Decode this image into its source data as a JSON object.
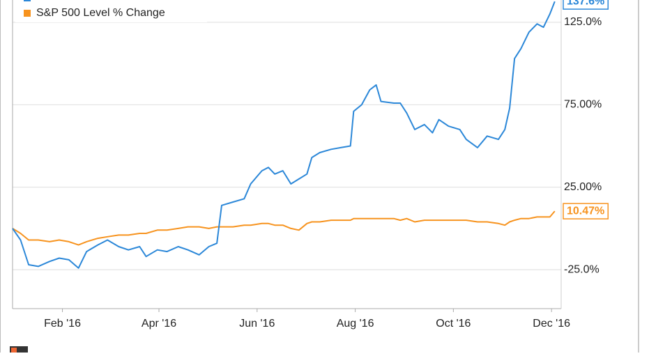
{
  "chart_data": {
    "type": "line",
    "x": [
      0,
      5,
      10,
      16,
      23,
      29,
      35,
      41,
      46,
      53,
      59,
      66,
      72,
      79,
      83,
      90,
      96,
      103,
      109,
      116,
      122,
      127,
      130,
      137,
      144,
      148,
      155,
      159,
      163,
      168,
      173,
      178,
      183,
      186,
      191,
      198,
      204,
      210,
      212,
      217,
      222,
      226,
      229,
      237,
      241,
      245,
      250,
      256,
      261,
      265,
      271,
      278,
      282,
      289,
      295,
      302,
      306,
      309,
      312,
      316,
      321,
      326,
      330,
      334,
      337
    ],
    "xlim": [
      0,
      341
    ],
    "xticks": [
      {
        "value": 31,
        "label": "Feb '16"
      },
      {
        "value": 91,
        "label": "Apr '16"
      },
      {
        "value": 152,
        "label": "Jun '16"
      },
      {
        "value": 213,
        "label": "Aug '16"
      },
      {
        "value": 274,
        "label": "Oct '16"
      },
      {
        "value": 335,
        "label": "Dec '16"
      }
    ],
    "ylim": [
      -48.6,
      138.5
    ],
    "yticks": [
      {
        "value": 125,
        "label": "125.0%"
      },
      {
        "value": 75,
        "label": "75.00%"
      },
      {
        "value": 25,
        "label": "25.00%"
      },
      {
        "value": -25,
        "label": "-25.0%"
      }
    ],
    "grid": true,
    "legend": "top-left",
    "series": [
      {
        "color": "#2b87d8",
        "values": [
          0,
          -7,
          -22,
          -23,
          -20,
          -18,
          -19,
          -24,
          -14,
          -10,
          -7,
          -11,
          -13,
          -11,
          -17,
          -13,
          -14,
          -11,
          -13,
          -16,
          -11,
          -9,
          14,
          16,
          18,
          27,
          35,
          37,
          33,
          35,
          27,
          30,
          33,
          43,
          46,
          48,
          49,
          50,
          71,
          75,
          84,
          87,
          77,
          76,
          76,
          70,
          60,
          63,
          58,
          66,
          62,
          60,
          54,
          49,
          56,
          54,
          60,
          73,
          103,
          109,
          119,
          124,
          122,
          130,
          137.6
        ],
        "value_labels": [
          null,
          null,
          null,
          null,
          null,
          null,
          null,
          null,
          null,
          null,
          null,
          null,
          null,
          null,
          null,
          null,
          null,
          null,
          null,
          null,
          null,
          null,
          null,
          null,
          null,
          null,
          null,
          null,
          null,
          null,
          null,
          null,
          null,
          null,
          null,
          null,
          null,
          null,
          null,
          null,
          null,
          null,
          null,
          null,
          null,
          null,
          null,
          null,
          null,
          null,
          null,
          null,
          null,
          null,
          null,
          null,
          null,
          null,
          null,
          null,
          null,
          null,
          null,
          null,
          "137.6%"
        ]
      },
      {
        "name": "S&P 500 Level % Change",
        "color": "#f7931e",
        "values": [
          0,
          -3,
          -7,
          -7,
          -8,
          -7,
          -8,
          -10,
          -8,
          -6,
          -5,
          -4,
          -4,
          -3,
          -3,
          -1,
          -1,
          0,
          1,
          1,
          0,
          1,
          1,
          1,
          2,
          2,
          3,
          3,
          2,
          2,
          0,
          -1,
          3,
          4,
          4,
          5,
          5,
          5,
          6,
          6,
          6,
          6,
          6,
          6,
          5,
          6,
          4,
          5,
          5,
          5,
          5,
          5,
          5,
          4,
          4,
          3,
          2,
          4,
          5,
          6,
          6,
          7,
          7,
          7,
          10.47
        ],
        "value_labels": [
          null,
          null,
          null,
          null,
          null,
          null,
          null,
          null,
          null,
          null,
          null,
          null,
          null,
          null,
          null,
          null,
          null,
          null,
          null,
          null,
          null,
          null,
          null,
          null,
          null,
          null,
          null,
          null,
          null,
          null,
          null,
          null,
          null,
          null,
          null,
          null,
          null,
          null,
          null,
          null,
          null,
          null,
          null,
          null,
          null,
          null,
          null,
          null,
          null,
          null,
          null,
          null,
          null,
          null,
          null,
          null,
          null,
          null,
          null,
          null,
          null,
          null,
          null,
          null,
          "10.47%"
        ]
      }
    ]
  }
}
